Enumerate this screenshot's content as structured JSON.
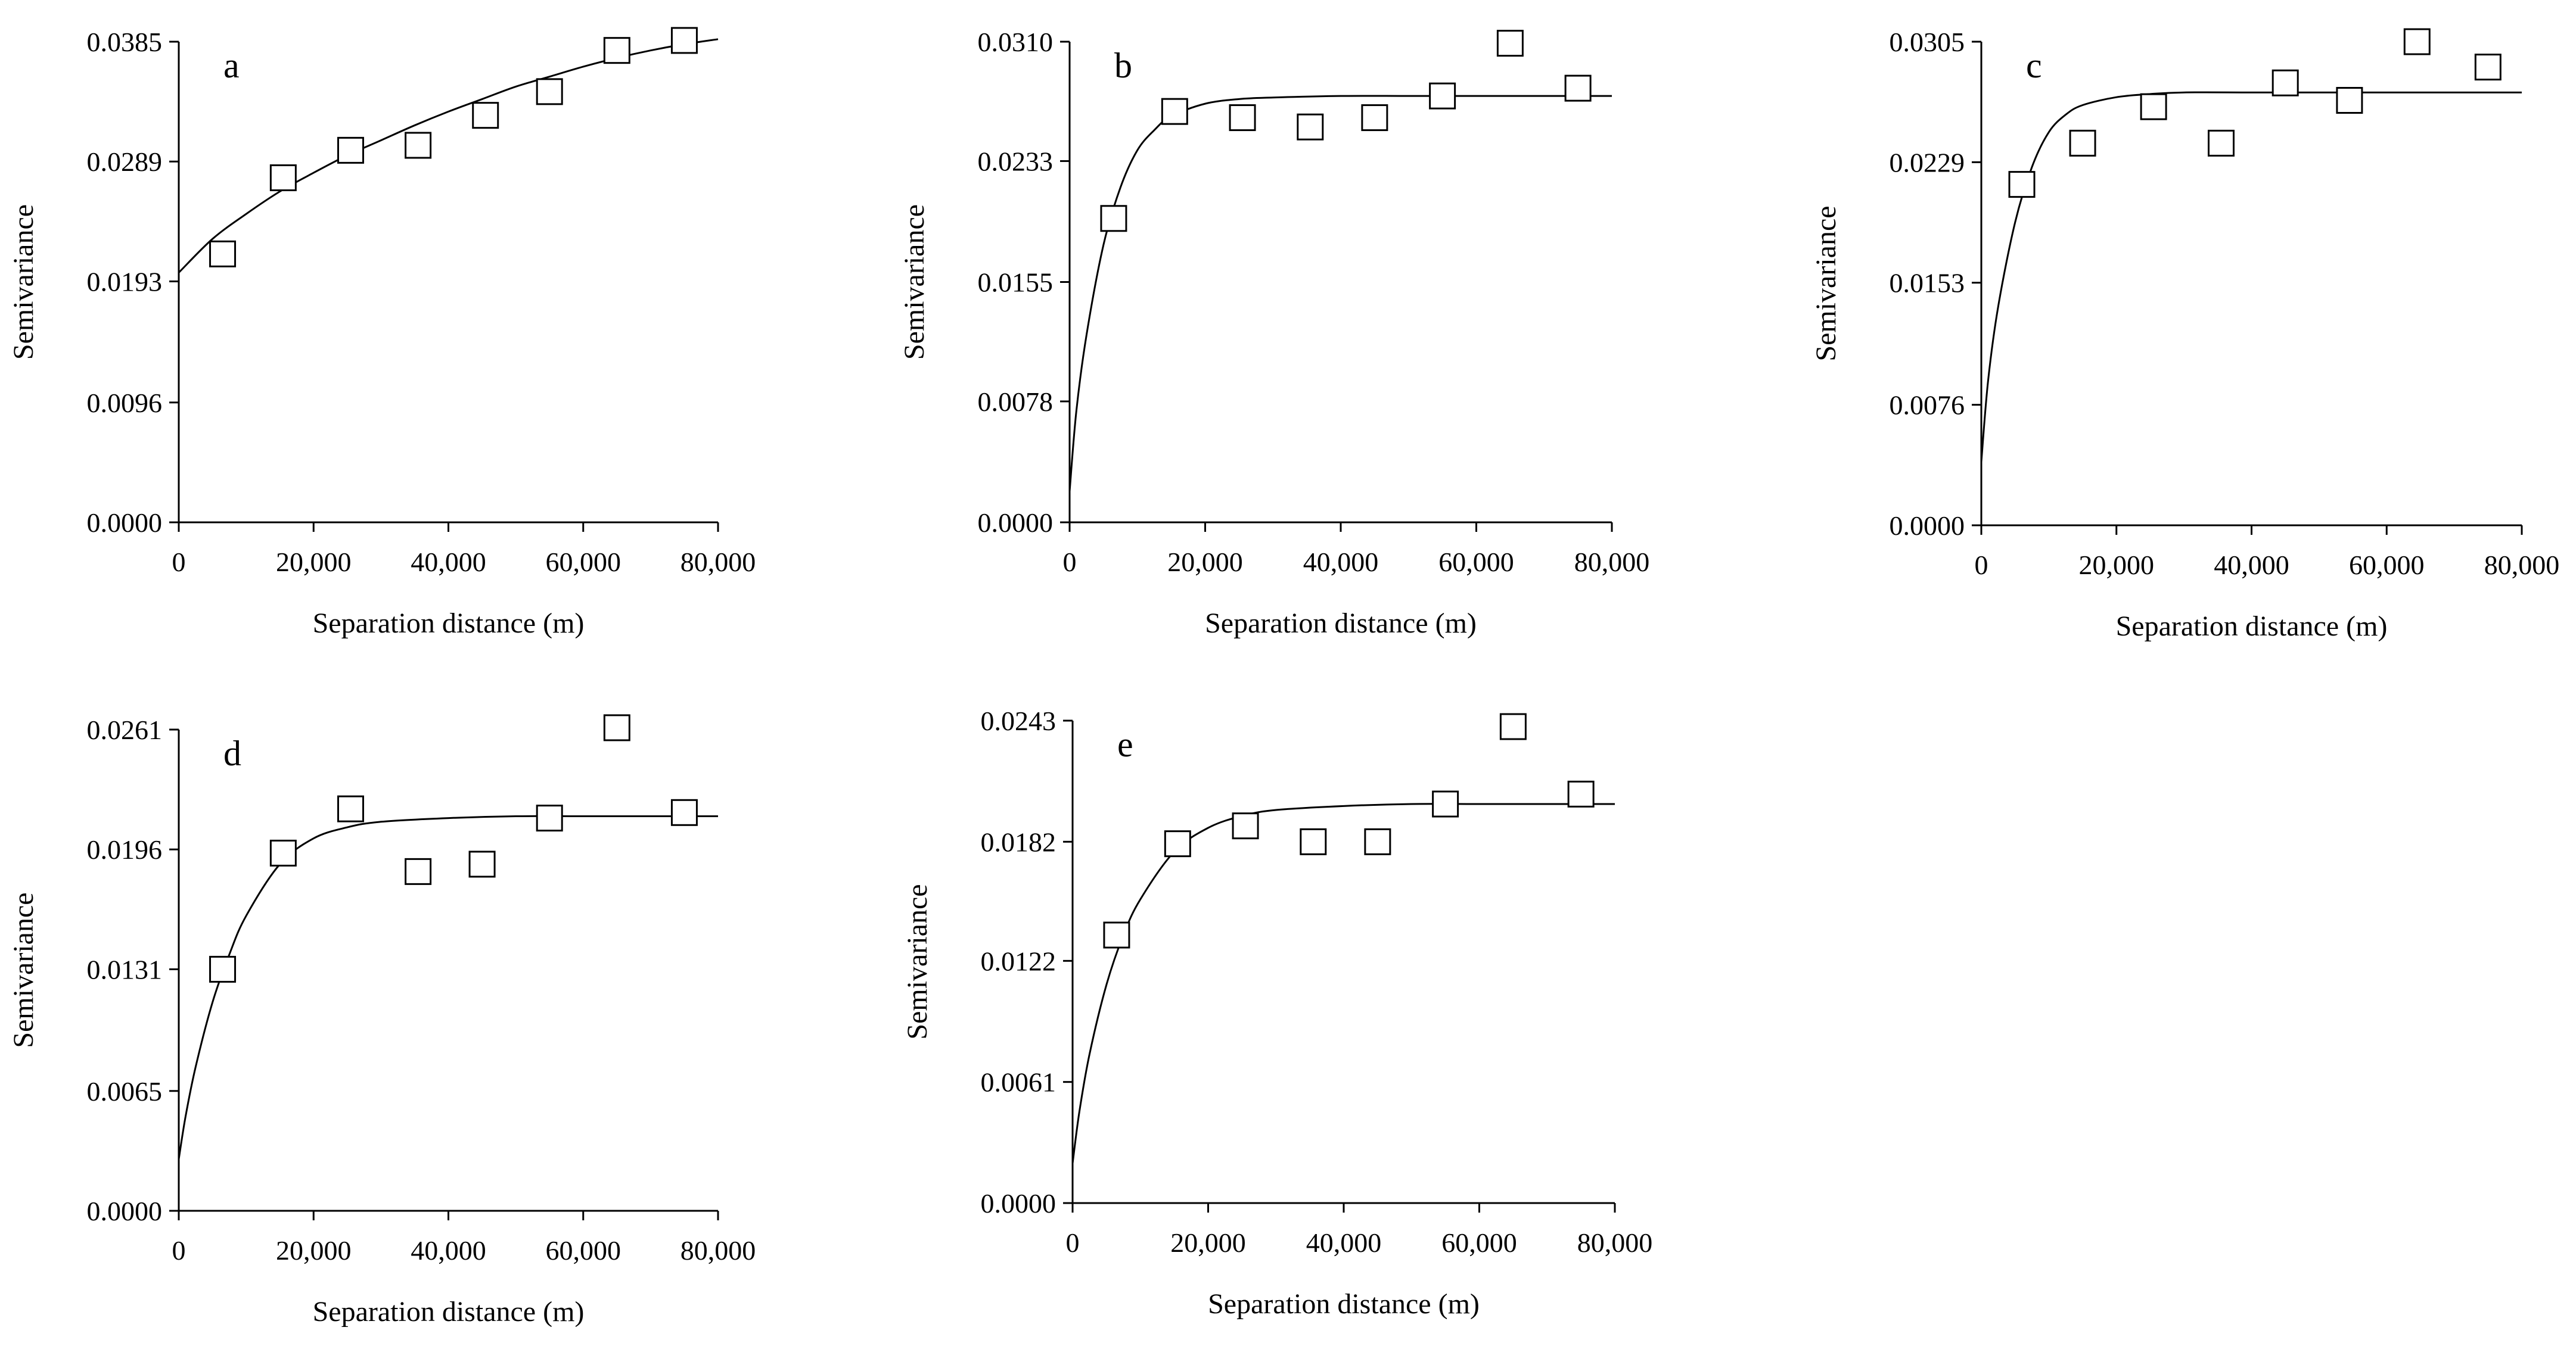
{
  "style": {
    "axis_color": "#000000",
    "line_color": "#000000",
    "marker_fill": "#ffffff",
    "background": "#ffffff"
  },
  "chart_data": [
    {
      "type": "scatter",
      "panel_label": "a",
      "xlabel": "Separation distance (m)",
      "ylabel": "Semivariance",
      "xlim": [
        0,
        80000
      ],
      "ylim": [
        0,
        0.0385
      ],
      "x_ticks": [
        0,
        20000,
        40000,
        60000,
        80000
      ],
      "x_tick_labels": [
        "0",
        "20,000",
        "40,000",
        "60,000",
        "80,000"
      ],
      "y_ticks": [
        0,
        0.0096,
        0.0193,
        0.0289,
        0.0385
      ],
      "y_tick_labels": [
        "0.0000",
        "0.0096",
        "0.0193",
        "0.0289",
        "0.0385"
      ],
      "grid": false,
      "points": {
        "x": [
          6500,
          15500,
          25500,
          35500,
          45500,
          55000,
          65000,
          75000
        ],
        "y": [
          0.0215,
          0.0276,
          0.0298,
          0.0302,
          0.0326,
          0.0345,
          0.0378,
          0.0386
        ]
      },
      "fitted_curve": {
        "x": [
          0,
          5000,
          10000,
          15000,
          20000,
          25000,
          30000,
          35000,
          40000,
          45000,
          50000,
          55000,
          60000,
          65000,
          70000,
          75000,
          80000
        ],
        "y": [
          0.02,
          0.0227,
          0.0247,
          0.0265,
          0.028,
          0.0294,
          0.0306,
          0.0318,
          0.0329,
          0.0339,
          0.0349,
          0.0357,
          0.0365,
          0.0372,
          0.0378,
          0.0383,
          0.0387
        ]
      }
    },
    {
      "type": "scatter",
      "panel_label": "b",
      "xlabel": "Separation distance (m)",
      "ylabel": "Semivariance",
      "xlim": [
        0,
        80000
      ],
      "ylim": [
        0,
        0.031
      ],
      "x_ticks": [
        0,
        20000,
        40000,
        60000,
        80000
      ],
      "x_tick_labels": [
        "0",
        "20,000",
        "40,000",
        "60,000",
        "80,000"
      ],
      "y_ticks": [
        0,
        0.0078,
        0.0155,
        0.0233,
        0.031
      ],
      "y_tick_labels": [
        "0.0000",
        "0.0078",
        "0.0155",
        "0.0233",
        "0.0310"
      ],
      "grid": false,
      "points": {
        "x": [
          6500,
          15500,
          25500,
          35500,
          45000,
          55000,
          65000,
          75000
        ],
        "y": [
          0.0196,
          0.0265,
          0.0261,
          0.0255,
          0.0261,
          0.0275,
          0.0309,
          0.028
        ]
      },
      "fitted_curve": {
        "x": [
          0,
          1000,
          2500,
          5000,
          7500,
          10000,
          12500,
          15000,
          20000,
          25000,
          30000,
          40000,
          50000,
          60000,
          70000,
          80000
        ],
        "y": [
          0.002,
          0.0072,
          0.0121,
          0.0179,
          0.0216,
          0.024,
          0.0253,
          0.0262,
          0.027,
          0.0273,
          0.0274,
          0.0275,
          0.0275,
          0.0275,
          0.0275,
          0.0275
        ]
      }
    },
    {
      "type": "scatter",
      "panel_label": "c",
      "xlabel": "Separation distance (m)",
      "ylabel": "Semivariance",
      "xlim": [
        0,
        80000
      ],
      "ylim": [
        0,
        0.0305
      ],
      "x_ticks": [
        0,
        20000,
        40000,
        60000,
        80000
      ],
      "x_tick_labels": [
        "0",
        "20,000",
        "40,000",
        "60,000",
        "80,000"
      ],
      "y_ticks": [
        0,
        0.0076,
        0.0153,
        0.0229,
        0.0305
      ],
      "y_tick_labels": [
        "0.0000",
        "0.0076",
        "0.0153",
        "0.0229",
        "0.0305"
      ],
      "grid": false,
      "points": {
        "x": [
          6000,
          15000,
          25500,
          35500,
          45000,
          54500,
          64500,
          75000
        ],
        "y": [
          0.0215,
          0.0241,
          0.0264,
          0.0241,
          0.0279,
          0.0268,
          0.0305,
          0.0289
        ]
      },
      "fitted_curve": {
        "x": [
          0,
          1000,
          2500,
          5000,
          7500,
          10000,
          12500,
          15000,
          20000,
          25000,
          30000,
          40000,
          50000,
          60000,
          70000,
          80000
        ],
        "y": [
          0.004,
          0.0091,
          0.0138,
          0.0191,
          0.0226,
          0.0248,
          0.0259,
          0.0265,
          0.027,
          0.0272,
          0.0273,
          0.0273,
          0.0273,
          0.0273,
          0.0273,
          0.0273
        ]
      }
    },
    {
      "type": "scatter",
      "panel_label": "d",
      "xlabel": "Separation distance (m)",
      "ylabel": "Semivariance",
      "xlim": [
        0,
        80000
      ],
      "ylim": [
        0,
        0.0261
      ],
      "x_ticks": [
        0,
        20000,
        40000,
        60000,
        80000
      ],
      "x_tick_labels": [
        "0",
        "20,000",
        "40,000",
        "60,000",
        "80,000"
      ],
      "y_ticks": [
        0,
        0.0065,
        0.0131,
        0.0196,
        0.0261
      ],
      "y_tick_labels": [
        "0.0000",
        "0.0065",
        "0.0131",
        "0.0196",
        "0.0261"
      ],
      "grid": false,
      "points": {
        "x": [
          6500,
          15500,
          25500,
          35500,
          45000,
          55000,
          65000,
          75000
        ],
        "y": [
          0.0131,
          0.0194,
          0.0218,
          0.0184,
          0.0188,
          0.0213,
          0.0262,
          0.0216
        ]
      },
      "fitted_curve": {
        "x": [
          0,
          1000,
          2500,
          5000,
          7500,
          10000,
          15000,
          20000,
          25000,
          30000,
          40000,
          50000,
          60000,
          70000,
          80000
        ],
        "y": [
          0.0028,
          0.0051,
          0.0078,
          0.0113,
          0.0139,
          0.016,
          0.0188,
          0.0202,
          0.0208,
          0.0211,
          0.0213,
          0.0214,
          0.0214,
          0.0214,
          0.0214
        ]
      }
    },
    {
      "type": "scatter",
      "panel_label": "e",
      "xlabel": "Separation distance (m)",
      "ylabel": "Semivariance",
      "xlim": [
        0,
        80000
      ],
      "ylim": [
        0,
        0.0243
      ],
      "x_ticks": [
        0,
        20000,
        40000,
        60000,
        80000
      ],
      "x_tick_labels": [
        "0",
        "20,000",
        "40,000",
        "60,000",
        "80,000"
      ],
      "y_ticks": [
        0,
        0.0061,
        0.0122,
        0.0182,
        0.0243
      ],
      "y_tick_labels": [
        "0.0000",
        "0.0061",
        "0.0122",
        "0.0182",
        "0.0243"
      ],
      "grid": false,
      "points": {
        "x": [
          6500,
          15500,
          25500,
          35500,
          45000,
          55000,
          65000,
          75000
        ],
        "y": [
          0.0135,
          0.0181,
          0.019,
          0.0182,
          0.0182,
          0.0201,
          0.024,
          0.0206
        ]
      },
      "fitted_curve": {
        "x": [
          0,
          1000,
          2500,
          5000,
          7500,
          10000,
          15000,
          20000,
          25000,
          30000,
          40000,
          50000,
          60000,
          70000,
          80000
        ],
        "y": [
          0.002,
          0.0046,
          0.0075,
          0.011,
          0.0135,
          0.0153,
          0.0177,
          0.0189,
          0.0195,
          0.0198,
          0.02,
          0.0201,
          0.0201,
          0.0201,
          0.0201
        ]
      }
    }
  ]
}
